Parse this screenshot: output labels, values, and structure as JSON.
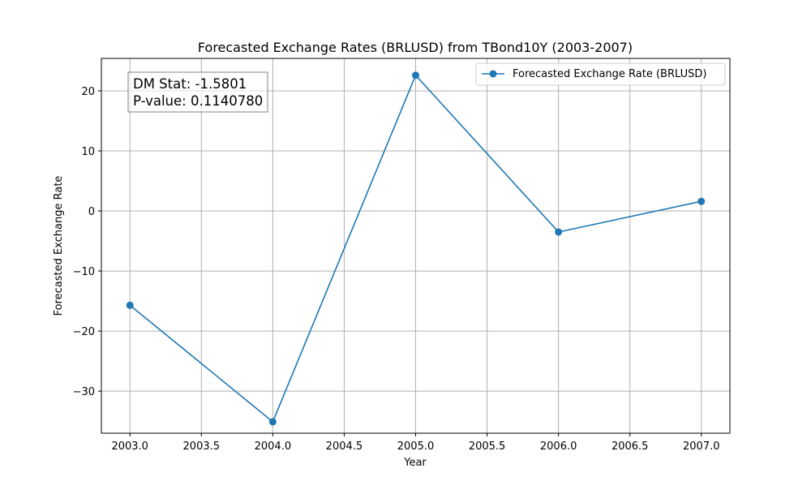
{
  "chart_data": {
    "type": "line",
    "title": "Forecasted Exchange Rates (BRLUSD) from TBond10Y (2003-2007)",
    "xlabel": "Year",
    "ylabel": "Forecasted Exchange Rate",
    "x": [
      2003,
      2004,
      2005,
      2006,
      2007
    ],
    "series": [
      {
        "name": "Forecasted Exchange Rate (BRLUSD)",
        "values": [
          -15.7,
          -35.1,
          22.6,
          -3.5,
          1.6
        ],
        "color": "#1f77b4",
        "marker": "circle"
      }
    ],
    "xlim": [
      2002.8,
      2007.2
    ],
    "ylim": [
      -37.0,
      25.4
    ],
    "xticks": [
      "2003.0",
      "2003.5",
      "2004.0",
      "2004.5",
      "2005.0",
      "2005.5",
      "2006.0",
      "2006.5",
      "2007.0"
    ],
    "xtick_values": [
      2003.0,
      2003.5,
      2004.0,
      2004.5,
      2005.0,
      2005.5,
      2006.0,
      2006.5,
      2007.0
    ],
    "yticks": [
      "20",
      "10",
      "0",
      "−10",
      "−20",
      "−30"
    ],
    "ytick_values": [
      20,
      10,
      0,
      -10,
      -20,
      -30
    ],
    "grid": true,
    "legend_position": "top-right",
    "annotation": {
      "line1": "DM Stat: -1.5801",
      "line2": "P-value: 0.1140780",
      "position": "top-left"
    }
  }
}
